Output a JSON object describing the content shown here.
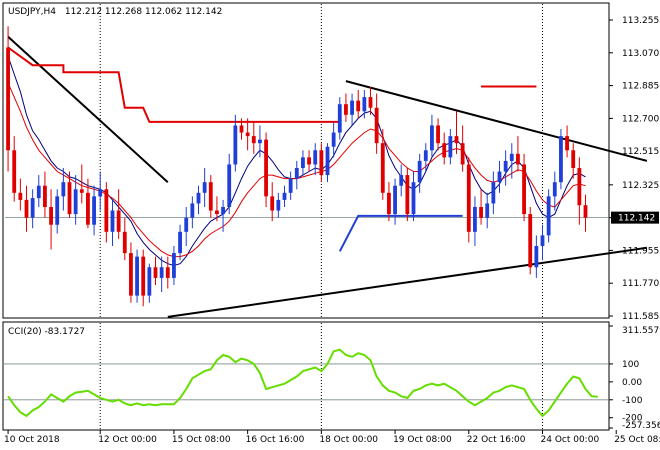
{
  "chart_data": [
    {
      "type": "candlestick",
      "title": "USDJPY,H4",
      "ohlc_header": "112.212 112.268 112.062 112.142",
      "colors": {
        "bull": "#1f3fd8",
        "bear": "#e00000",
        "frame": "#000000",
        "grid": "#7a8a8a",
        "bg": "#ffffff"
      },
      "ylim": [
        111.585,
        113.255
      ],
      "y_ticks": [
        "113.255",
        "113.070",
        "112.885",
        "112.700",
        "112.515",
        "112.325",
        "112.140",
        "111.955",
        "111.770",
        "111.585"
      ],
      "last_price_label": "112.142",
      "x_ticks": [
        {
          "bar": 0,
          "label": "10 Oct 2018"
        },
        {
          "bar": 15,
          "label": "12 Oct 00:00"
        },
        {
          "bar": 27,
          "label": "15 Oct 08:00"
        },
        {
          "bar": 39,
          "label": "16 Oct 16:00"
        },
        {
          "bar": 51,
          "label": "18 Oct 00:00"
        },
        {
          "bar": 63,
          "label": "19 Oct 08:00"
        },
        {
          "bar": 75,
          "label": "22 Oct 16:00"
        },
        {
          "bar": 87,
          "label": "24 Oct 00:00"
        },
        {
          "bar": 99,
          "label": "25 Oct 08:00"
        }
      ],
      "candles": [
        [
          113.1,
          113.22,
          112.4,
          112.52
        ],
        [
          112.52,
          112.6,
          112.23,
          112.28
        ],
        [
          112.28,
          112.36,
          112.18,
          112.24
        ],
        [
          112.24,
          112.32,
          112.06,
          112.14
        ],
        [
          112.14,
          112.3,
          112.08,
          112.25
        ],
        [
          112.25,
          112.38,
          112.2,
          112.32
        ],
        [
          112.32,
          112.4,
          112.14,
          112.2
        ],
        [
          112.2,
          112.3,
          111.96,
          112.1
        ],
        [
          112.1,
          112.3,
          112.05,
          112.26
        ],
        [
          112.26,
          112.42,
          112.18,
          112.34
        ],
        [
          112.34,
          112.4,
          112.14,
          112.16
        ],
        [
          112.16,
          112.38,
          112.1,
          112.3
        ],
        [
          112.3,
          112.44,
          112.22,
          112.28
        ],
        [
          112.28,
          112.36,
          112.08,
          112.1
        ],
        [
          112.1,
          112.32,
          112.04,
          112.26
        ],
        [
          112.26,
          112.4,
          112.18,
          112.3
        ],
        [
          112.3,
          112.34,
          112.0,
          112.06
        ],
        [
          112.06,
          112.24,
          111.98,
          112.18
        ],
        [
          112.18,
          112.3,
          112.02,
          112.06
        ],
        [
          112.06,
          112.14,
          111.9,
          111.94
        ],
        [
          111.94,
          112.0,
          111.66,
          111.7
        ],
        [
          111.7,
          111.96,
          111.66,
          111.92
        ],
        [
          111.92,
          111.96,
          111.64,
          111.7
        ],
        [
          111.7,
          111.88,
          111.66,
          111.86
        ],
        [
          111.86,
          111.92,
          111.76,
          111.8
        ],
        [
          111.8,
          111.92,
          111.72,
          111.86
        ],
        [
          111.86,
          111.92,
          111.74,
          111.8
        ],
        [
          111.8,
          111.98,
          111.76,
          111.94
        ],
        [
          111.94,
          112.1,
          111.9,
          112.06
        ],
        [
          112.06,
          112.2,
          111.98,
          112.14
        ],
        [
          112.14,
          112.26,
          112.08,
          112.22
        ],
        [
          112.22,
          112.32,
          112.16,
          112.28
        ],
        [
          112.28,
          112.42,
          112.2,
          112.34
        ],
        [
          112.34,
          112.38,
          112.14,
          112.18
        ],
        [
          112.18,
          112.26,
          112.12,
          112.16
        ],
        [
          112.16,
          112.24,
          112.06,
          112.2
        ],
        [
          112.2,
          112.5,
          112.16,
          112.44
        ],
        [
          112.44,
          112.72,
          112.4,
          112.66
        ],
        [
          112.66,
          112.7,
          112.58,
          112.62
        ],
        [
          112.62,
          112.7,
          112.52,
          112.6
        ],
        [
          112.6,
          112.68,
          112.5,
          112.56
        ],
        [
          112.56,
          112.66,
          112.48,
          112.58
        ],
        [
          112.58,
          112.62,
          112.2,
          112.26
        ],
        [
          112.26,
          112.34,
          112.12,
          112.18
        ],
        [
          112.18,
          112.28,
          112.14,
          112.24
        ],
        [
          112.24,
          112.32,
          112.2,
          112.28
        ],
        [
          112.28,
          112.4,
          112.24,
          112.36
        ],
        [
          112.36,
          112.46,
          112.3,
          112.42
        ],
        [
          112.42,
          112.52,
          112.38,
          112.48
        ],
        [
          112.48,
          112.52,
          112.4,
          112.44
        ],
        [
          112.44,
          112.56,
          112.38,
          112.52
        ],
        [
          112.52,
          112.56,
          112.34,
          112.38
        ],
        [
          112.38,
          112.56,
          112.34,
          112.54
        ],
        [
          112.54,
          112.68,
          112.48,
          112.62
        ],
        [
          112.62,
          112.82,
          112.58,
          112.78
        ],
        [
          112.78,
          112.84,
          112.68,
          112.72
        ],
        [
          112.72,
          112.84,
          112.66,
          112.8
        ],
        [
          112.8,
          112.86,
          112.7,
          112.74
        ],
        [
          112.74,
          112.86,
          112.7,
          112.82
        ],
        [
          112.82,
          112.88,
          112.72,
          112.76
        ],
        [
          112.76,
          112.84,
          112.5,
          112.56
        ],
        [
          112.56,
          112.64,
          112.24,
          112.28
        ],
        [
          112.28,
          112.34,
          112.12,
          112.16
        ],
        [
          112.16,
          112.36,
          112.1,
          112.32
        ],
        [
          112.32,
          112.44,
          112.26,
          112.38
        ],
        [
          112.38,
          112.42,
          112.12,
          112.16
        ],
        [
          112.16,
          112.4,
          112.12,
          112.34
        ],
        [
          112.34,
          112.5,
          112.28,
          112.46
        ],
        [
          112.46,
          112.56,
          112.4,
          112.52
        ],
        [
          112.52,
          112.72,
          112.48,
          112.66
        ],
        [
          112.66,
          112.7,
          112.52,
          112.56
        ],
        [
          112.56,
          112.62,
          112.44,
          112.48
        ],
        [
          112.48,
          112.64,
          112.44,
          112.6
        ],
        [
          112.6,
          112.74,
          112.5,
          112.56
        ],
        [
          112.56,
          112.66,
          112.4,
          112.44
        ],
        [
          112.44,
          112.48,
          112.0,
          112.06
        ],
        [
          112.06,
          112.26,
          111.98,
          112.2
        ],
        [
          112.2,
          112.3,
          112.1,
          112.14
        ],
        [
          112.14,
          112.28,
          112.08,
          112.22
        ],
        [
          112.22,
          112.4,
          112.16,
          112.34
        ],
        [
          112.34,
          112.46,
          112.28,
          112.4
        ],
        [
          112.4,
          112.52,
          112.32,
          112.46
        ],
        [
          112.46,
          112.56,
          112.36,
          112.5
        ],
        [
          112.5,
          112.6,
          112.4,
          112.44
        ],
        [
          112.44,
          112.5,
          112.12,
          112.16
        ],
        [
          112.16,
          112.2,
          111.82,
          111.86
        ],
        [
          111.86,
          112.04,
          111.8,
          111.98
        ],
        [
          111.98,
          112.1,
          111.9,
          112.04
        ],
        [
          112.04,
          112.3,
          112.0,
          112.26
        ],
        [
          112.26,
          112.4,
          112.18,
          112.34
        ],
        [
          112.34,
          112.64,
          112.3,
          112.6
        ],
        [
          112.6,
          112.66,
          112.48,
          112.52
        ],
        [
          112.52,
          112.56,
          112.36,
          112.42
        ],
        [
          112.42,
          112.48,
          112.1,
          112.21
        ],
        [
          112.21,
          112.27,
          112.06,
          112.14
        ]
      ],
      "overlays": [
        {
          "name": "fast-ma",
          "color": "#000080",
          "values": [
            113.05,
            112.95,
            112.85,
            112.72,
            112.63,
            112.58,
            112.52,
            112.46,
            112.42,
            112.4,
            112.37,
            112.36,
            112.34,
            112.32,
            112.31,
            112.3,
            112.28,
            112.24,
            112.2,
            112.16,
            112.12,
            112.05,
            112.0,
            111.96,
            111.93,
            111.9,
            111.88,
            111.87,
            111.88,
            111.92,
            111.98,
            112.03,
            112.08,
            112.12,
            112.14,
            112.16,
            112.2,
            112.28,
            112.36,
            112.43,
            112.48,
            112.52,
            112.5,
            112.46,
            112.41,
            112.37,
            112.36,
            112.36,
            112.38,
            112.4,
            112.42,
            112.41,
            112.44,
            112.49,
            112.56,
            112.62,
            112.66,
            112.7,
            112.73,
            112.74,
            112.7,
            112.6,
            112.49,
            112.42,
            112.37,
            112.32,
            112.3,
            112.33,
            112.4,
            112.48,
            112.53,
            112.55,
            112.56,
            112.58,
            112.54,
            112.44,
            112.36,
            112.3,
            112.27,
            112.29,
            112.33,
            112.39,
            112.44,
            112.46,
            112.42,
            112.32,
            112.22,
            112.16,
            112.14,
            112.16,
            112.24,
            112.32,
            112.38,
            112.39,
            112.37
          ]
        },
        {
          "name": "slow-ma",
          "color": "#e00000",
          "values": [
            112.9,
            112.82,
            112.74,
            112.65,
            112.58,
            112.52,
            112.48,
            112.44,
            112.4,
            112.38,
            112.36,
            112.34,
            112.32,
            112.31,
            112.3,
            112.29,
            112.27,
            112.25,
            112.22,
            112.18,
            112.14,
            112.09,
            112.05,
            112.01,
            111.98,
            111.95,
            111.93,
            111.92,
            111.92,
            111.93,
            111.95,
            111.98,
            112.02,
            112.05,
            112.07,
            112.09,
            112.12,
            112.17,
            112.23,
            112.28,
            112.32,
            112.36,
            112.38,
            112.38,
            112.37,
            112.36,
            112.36,
            112.36,
            112.37,
            112.38,
            112.39,
            112.4,
            112.41,
            112.44,
            112.48,
            112.52,
            112.56,
            112.59,
            112.62,
            112.64,
            112.63,
            112.59,
            112.53,
            112.49,
            112.45,
            112.42,
            112.4,
            112.4,
            112.43,
            112.46,
            112.49,
            112.51,
            112.52,
            112.53,
            112.52,
            112.47,
            112.42,
            112.38,
            112.35,
            112.34,
            112.35,
            112.37,
            112.39,
            112.41,
            112.4,
            112.35,
            112.29,
            112.24,
            112.21,
            112.2,
            112.24,
            112.28,
            112.32,
            112.33,
            112.32
          ]
        }
      ],
      "drawn_lines": [
        {
          "name": "trendline-early-down",
          "color": "#000000",
          "width": 2,
          "from": [
            0,
            113.16
          ],
          "to": [
            26,
            112.34
          ]
        },
        {
          "name": "trendline-upper",
          "color": "#000000",
          "width": 2,
          "from": [
            55,
            112.91
          ],
          "to": [
            104,
            112.46
          ]
        },
        {
          "name": "trendline-lower",
          "color": "#000000",
          "width": 2,
          "from": [
            26,
            111.58
          ],
          "to": [
            104,
            111.97
          ]
        },
        {
          "name": "red-step-upper",
          "color": "#e00000",
          "width": 2,
          "points": [
            [
              0,
              113.1
            ],
            [
              4,
              113.0
            ],
            [
              9,
              113.0
            ],
            [
              9,
              112.96
            ],
            [
              18,
              112.96
            ],
            [
              19,
              112.76
            ],
            [
              22,
              112.76
            ],
            [
              23,
              112.68
            ],
            [
              54,
              112.68
            ]
          ]
        },
        {
          "name": "red-level-right",
          "color": "#e00000",
          "width": 2,
          "points": [
            [
              77,
              112.88
            ],
            [
              86,
              112.88
            ]
          ]
        },
        {
          "name": "blue-step",
          "color": "#1f3fd8",
          "width": 2,
          "points": [
            [
              54,
              111.95
            ],
            [
              57,
              112.15
            ],
            [
              74,
              112.15
            ]
          ]
        }
      ],
      "vlines_dotted_at_bars": [
        15,
        51,
        87
      ],
      "subpanels": [
        {
          "type": "line",
          "name": "CCI(20)",
          "label": "CCI(20) -83.1727",
          "color": "#66dd00",
          "ylim": [
            -257.3562,
            311.5579
          ],
          "y_ticks": [
            "311.5579",
            "100",
            "0.00",
            "-100",
            "-200",
            "-257.3562"
          ],
          "ref_levels": [
            100,
            -100
          ],
          "values": [
            -80,
            -130,
            -170,
            -190,
            -160,
            -140,
            -110,
            -70,
            -90,
            -110,
            -80,
            -60,
            -55,
            -50,
            -70,
            -90,
            -100,
            -110,
            -100,
            -120,
            -130,
            -120,
            -130,
            -125,
            -130,
            -125,
            -125,
            -125,
            -90,
            -40,
            20,
            40,
            60,
            70,
            120,
            150,
            140,
            110,
            130,
            120,
            100,
            50,
            -40,
            -30,
            -20,
            -10,
            10,
            30,
            60,
            70,
            80,
            60,
            100,
            170,
            180,
            150,
            140,
            160,
            150,
            120,
            30,
            -20,
            -50,
            -60,
            -80,
            -90,
            -50,
            -40,
            -20,
            -10,
            -20,
            -10,
            -30,
            -50,
            -80,
            -110,
            -130,
            -110,
            -90,
            -60,
            -50,
            -30,
            -20,
            -30,
            -40,
            -100,
            -150,
            -190,
            -160,
            -110,
            -60,
            -10,
            30,
            20,
            -40,
            -80,
            -83.1727
          ]
        }
      ]
    }
  ]
}
